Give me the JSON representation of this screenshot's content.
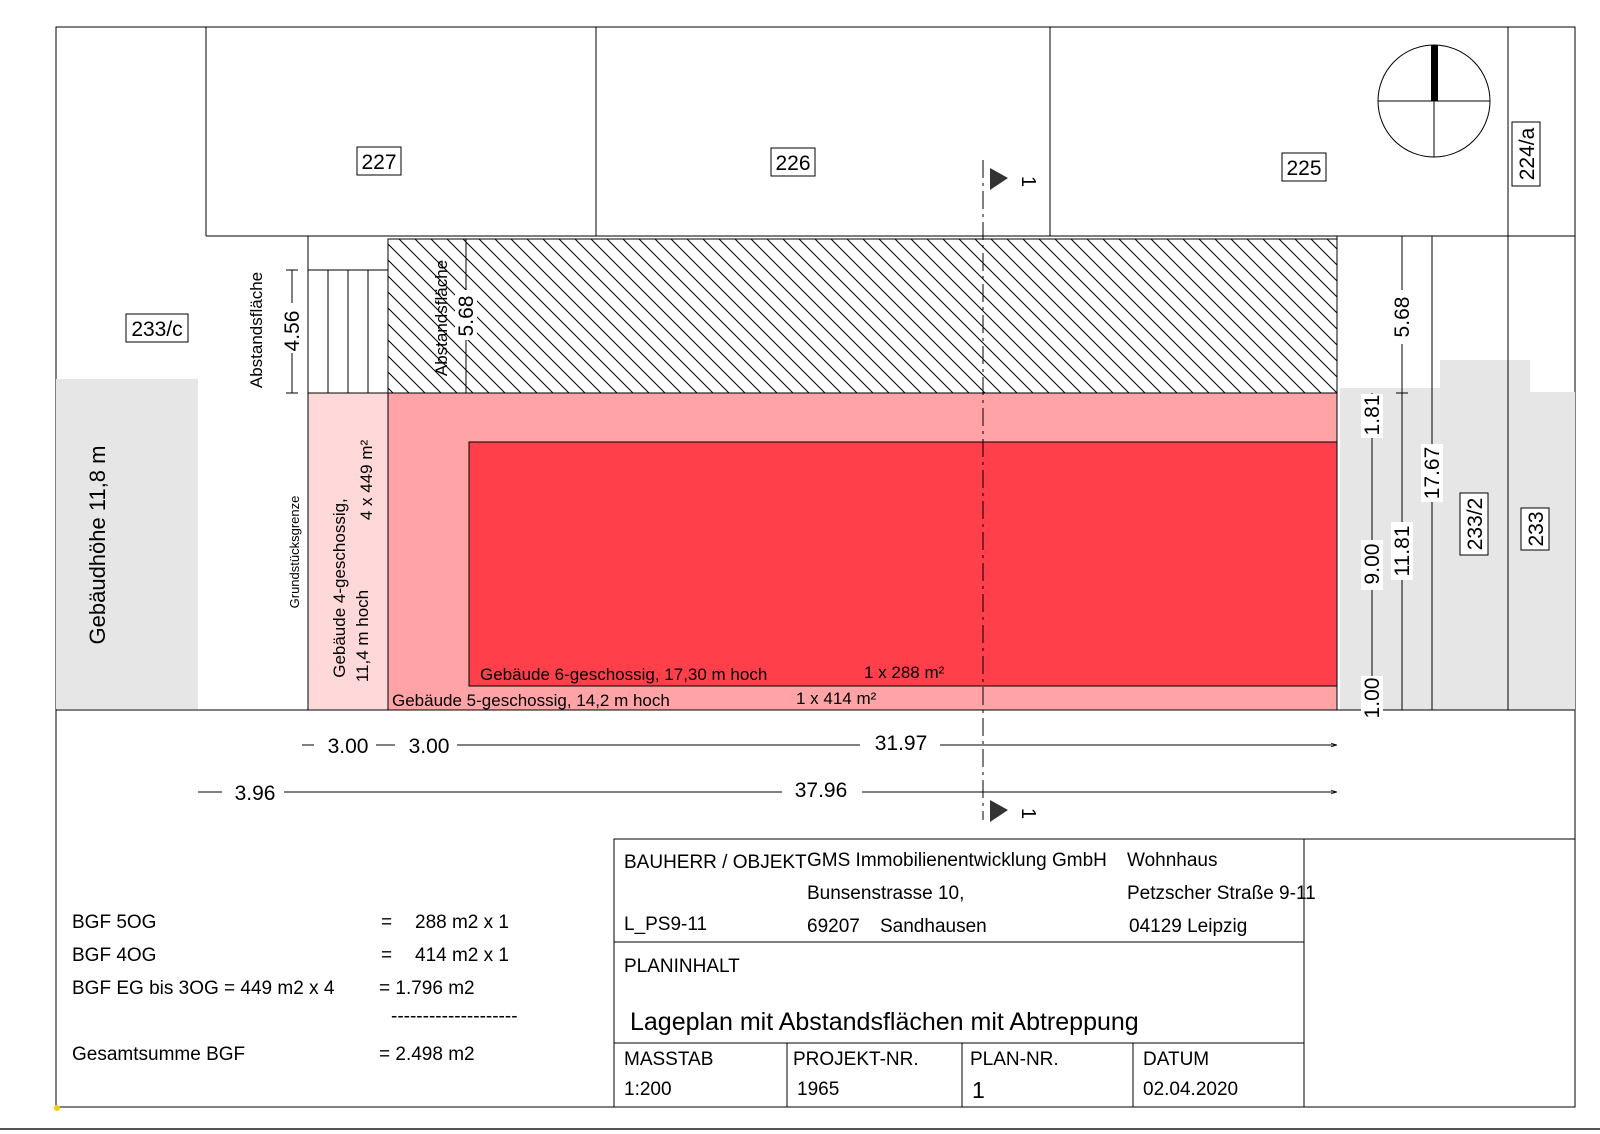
{
  "parcels": {
    "p227": "227",
    "p226": "226",
    "p225": "225",
    "p224a": "224/a",
    "p233c": "233/c",
    "p233_2": "233/2",
    "p233": "233"
  },
  "section_marker": "1",
  "labels": {
    "neighbor_height": "Gebäudhöhe 11,8 m",
    "abstandsflaeche_left": "Abstandsfläche",
    "abstandsflaeche_mid": "Abstandsfläche",
    "grenze": "Grundstücksgrenze",
    "building4_line1": "Gebäude 4-geschossig,",
    "building4_line2": "11,4 m hoch",
    "building4_area": "4 x 449 m²",
    "building6": "Gebäude 6-geschossig, 17,30 m hoch",
    "building6_area": "1 x 288 m²",
    "building5": "Gebäude 5-geschossig, 14,2 m hoch",
    "building5_area": "1 x 414 m²"
  },
  "dimensions": {
    "d456": "4.56",
    "d568_left": "5.68",
    "d568_right": "5.68",
    "d181": "1.81",
    "d900": "9.00",
    "d1181": "11.81",
    "d1767": "17.67",
    "d100": "1.00",
    "d300a": "3.00",
    "d300b": "3.00",
    "d3197": "31.97",
    "d396": "3.96",
    "d3796": "37.96"
  },
  "bgf": {
    "row1_label": "BGF 5OG",
    "row1_eq": "=",
    "row1_value": "288 m2  x 1",
    "row2_label": "BGF 4OG",
    "row2_eq": "=",
    "row2_value": "414 m2  x 1",
    "row3_label": "BGF EG bis  3OG = 449 m2  x  4",
    "row3_value": "= 1.796 m2",
    "separator": "--------------------",
    "total_label": "Gesamtsumme  BGF",
    "total_value": "= 2.498 m2"
  },
  "title_block": {
    "bauherr_label": "BAUHERR / OBJEKT",
    "bauherr_name": "GMS Immobilienentwicklung GmbH",
    "bauherr_street": "Bunsenstrasse 10,",
    "bauherr_zip": "69207",
    "bauherr_city": "Sandhausen",
    "project_code": "L_PS9-11",
    "object_name": "Wohnhaus",
    "object_street": "Petzscher Straße 9-11",
    "object_city": "04129 Leipzig",
    "planinhalt_label": "PLANINHALT",
    "planinhalt_value": "Lageplan mit Abstandsflächen mit Abtreppung",
    "masstab_label": "MASSTAB",
    "masstab_value": "1:200",
    "projekt_label": "PROJEKT-NR.",
    "projekt_value": "1965",
    "plan_label": "PLAN-NR.",
    "plan_value": "1",
    "datum_label": "DATUM",
    "datum_value": "02.04.2020"
  },
  "colors": {
    "building6": "#ff404a",
    "building5": "#ffa3a6",
    "building4": "#ffd8d9",
    "neighbor": "#e6e6e6",
    "line": "#000000"
  }
}
